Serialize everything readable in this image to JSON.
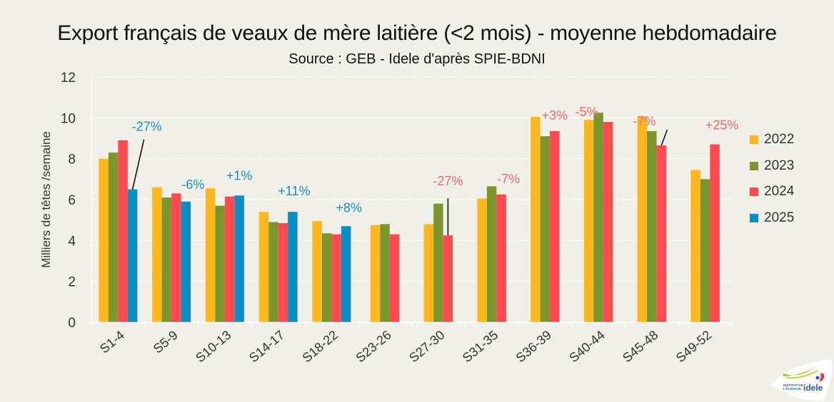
{
  "chart_data": {
    "type": "bar",
    "title": "Export français de veaux de mère laitière (<2 mois) - moyenne hebdomadaire",
    "subtitle": "Source : GEB - Idele d'après SPIE-BDNI",
    "xlabel": "",
    "ylabel": "Milliers de têtes /semaine",
    "ylim": [
      0,
      12
    ],
    "yticks": [
      "0",
      "2",
      "4",
      "6",
      "8",
      "10",
      "12"
    ],
    "ytick_values": [
      0,
      2,
      4,
      6,
      8,
      10,
      12
    ],
    "grid": true,
    "legend_position": "right",
    "categories": [
      "S1-4",
      "S5-9",
      "S10-13",
      "S14-17",
      "S18-22",
      "S23-26",
      "S27-30",
      "S31-35",
      "S36-39",
      "S40-44",
      "S45-48",
      "S49-52"
    ],
    "series": [
      {
        "name": "2022",
        "color": "#fdb71f",
        "values": [
          8.0,
          6.6,
          6.55,
          5.4,
          4.95,
          4.75,
          4.8,
          6.05,
          10.05,
          9.9,
          10.05,
          7.45
        ]
      },
      {
        "name": "2023",
        "color": "#7b962d",
        "values": [
          8.3,
          6.1,
          5.7,
          4.9,
          4.35,
          4.8,
          5.8,
          6.65,
          9.1,
          10.25,
          9.35,
          7.0
        ]
      },
      {
        "name": "2024",
        "color": "#ff4a50",
        "values": [
          8.9,
          6.3,
          6.15,
          4.85,
          4.3,
          4.3,
          4.25,
          6.25,
          9.35,
          9.8,
          8.65,
          8.7
        ]
      },
      {
        "name": "2025",
        "color": "#0b8ec5",
        "values": [
          6.5,
          5.9,
          6.2,
          5.4,
          4.7,
          null,
          null,
          null,
          null,
          null,
          null,
          null
        ]
      }
    ],
    "annotations": [
      {
        "text": "-27%",
        "category": "S1-4",
        "series": "2025",
        "color": "#1b8fc6",
        "leader": true
      },
      {
        "text": "-6%",
        "category": "S5-9",
        "series": "2025",
        "color": "#1b8fc6",
        "leader": false
      },
      {
        "text": "+1%",
        "category": "S10-13",
        "series": "2025",
        "color": "#1b8fc6",
        "leader": false
      },
      {
        "text": "+11%",
        "category": "S14-17",
        "series": "2025",
        "color": "#1b8fc6",
        "leader": false
      },
      {
        "text": "+8%",
        "category": "S18-22",
        "series": "2025",
        "color": "#1b8fc6",
        "leader": false
      },
      {
        "text": "-27%",
        "category": "S27-30",
        "series": "2024",
        "color": "#f26a6a",
        "leader": true
      },
      {
        "text": "-7%",
        "category": "S31-35",
        "series": "2024",
        "color": "#f26a6a",
        "leader": false
      },
      {
        "text": "+3%",
        "category": "S36-39",
        "series": "2024",
        "color": "#f26a6a",
        "leader": false
      },
      {
        "text": "-5%",
        "category": "S40-44",
        "series": "2024",
        "color": "#f26a6a",
        "leader": false
      },
      {
        "text": "-7%",
        "category": "S45-48",
        "series": "2024",
        "color": "#f26a6a",
        "leader": true
      },
      {
        "text": "+25%",
        "category": "S49-52",
        "series": "2024",
        "color": "#f26a6a",
        "leader": false
      }
    ]
  },
  "logo": {
    "line1": "INSTITUT DE",
    "line2": "L'ÉLEVAGE",
    "brand": "idele"
  }
}
